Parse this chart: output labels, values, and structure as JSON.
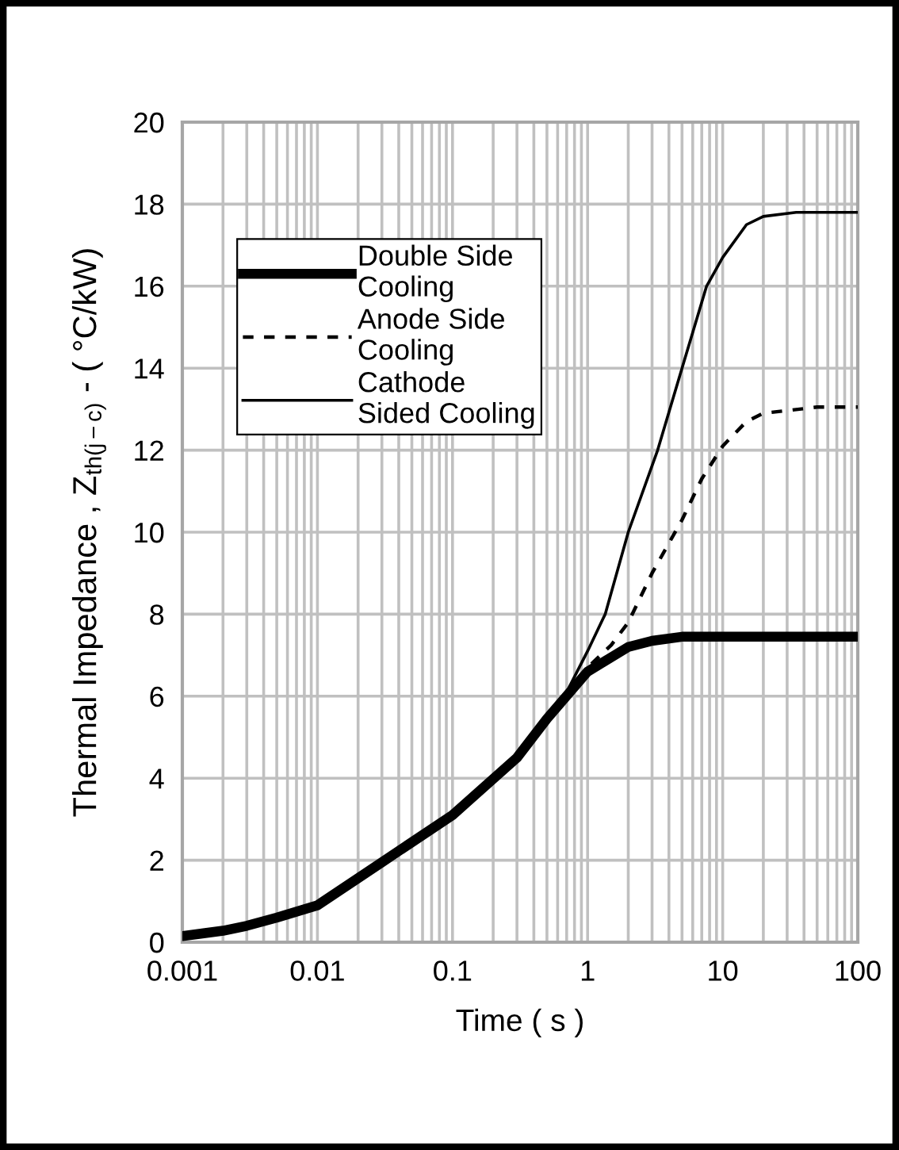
{
  "chart_data": {
    "type": "line",
    "xlabel": "Time ( s )",
    "ylabel": "Thermal Impedance , Z$_{th(j−c)}$ - ( °C/kW)",
    "log": "x",
    "xlim": [
      0.001,
      100
    ],
    "xticks": [
      0.001,
      0.01,
      0.1,
      1,
      10,
      100
    ],
    "ylim": [
      0,
      20
    ],
    "yticks": [
      0,
      2,
      4,
      6,
      8,
      10,
      12,
      14,
      16,
      18,
      20
    ],
    "grid": true,
    "legend": "top left",
    "marker": "none",
    "series": [
      {
        "name": "Double Side Cooling",
        "color": "#000000",
        "line_style": "solid",
        "x": [
          0.001,
          0.002,
          0.003,
          0.005,
          0.01,
          0.03,
          0.1,
          0.3,
          0.5,
          1,
          2,
          3,
          5,
          10,
          100
        ],
        "values": [
          0.15,
          0.28,
          0.4,
          0.6,
          0.9,
          1.95,
          3.1,
          4.5,
          5.45,
          6.6,
          7.2,
          7.35,
          7.45,
          7.45,
          7.45
        ]
      },
      {
        "name": "Anode Side Cooling",
        "color": "#000000",
        "line_style": "dashed",
        "x": [
          0.001,
          0.002,
          0.003,
          0.005,
          0.01,
          0.03,
          0.1,
          0.3,
          0.5,
          1,
          1.5,
          2,
          3,
          5,
          7,
          10,
          15,
          20,
          50,
          100
        ],
        "values": [
          0.15,
          0.28,
          0.4,
          0.6,
          0.9,
          1.95,
          3.1,
          4.5,
          5.45,
          6.7,
          7.25,
          7.8,
          9.0,
          10.3,
          11.3,
          12.1,
          12.7,
          12.9,
          13.05,
          13.05
        ]
      },
      {
        "name": "Cathode Sided Cooling",
        "color": "#000000",
        "line_style": "solid",
        "x": [
          0.001,
          0.002,
          0.003,
          0.005,
          0.01,
          0.03,
          0.1,
          0.3,
          0.5,
          0.7,
          1,
          1.35,
          2,
          3.3,
          5,
          7.6,
          10,
          15,
          20,
          35,
          100
        ],
        "values": [
          0.15,
          0.28,
          0.4,
          0.6,
          0.9,
          1.95,
          3.1,
          4.5,
          5.5,
          6.1,
          7.1,
          8.0,
          10.0,
          12.0,
          14.0,
          16.0,
          16.7,
          17.5,
          17.7,
          17.8,
          17.8
        ]
      }
    ]
  }
}
